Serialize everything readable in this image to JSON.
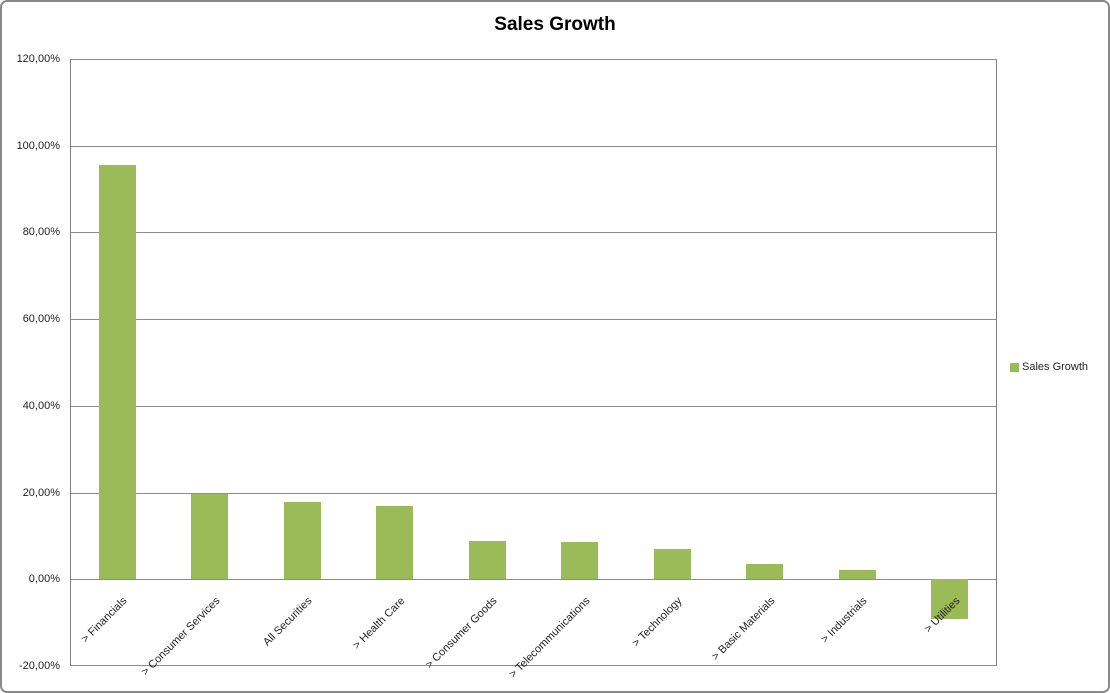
{
  "chart_data": {
    "type": "bar",
    "title": "Sales Growth",
    "categories": [
      "> Financials",
      "> Consumer Services",
      "All Securities",
      "> Health Care",
      "> Consumer Goods",
      "> Telecommunications",
      "> Technology",
      "> Basic Materials",
      "> Industrials",
      "> Utilities"
    ],
    "series": [
      {
        "name": "Sales Growth",
        "color": "#9BBB59",
        "values": [
          95.6,
          19.6,
          17.8,
          17.0,
          8.8,
          8.5,
          7.0,
          3.5,
          2.1,
          -9.2
        ]
      }
    ],
    "ylim": [
      -20,
      120
    ],
    "ytick_step": 20,
    "yticks": [
      {
        "value": 120,
        "label": "120,00%"
      },
      {
        "value": 100,
        "label": "100,00%"
      },
      {
        "value": 80,
        "label": "80,00%"
      },
      {
        "value": 60,
        "label": "60,00%"
      },
      {
        "value": 40,
        "label": "40,00%"
      },
      {
        "value": 20,
        "label": "20,00%"
      },
      {
        "value": 0,
        "label": "0,00%"
      },
      {
        "value": -20,
        "label": "-20,00%"
      }
    ],
    "grid": true,
    "xlabel": "",
    "ylabel": "",
    "legend": {
      "position": "right",
      "entries": [
        {
          "label": "Sales Growth",
          "color": "#9BBB59"
        }
      ]
    }
  },
  "colors": {
    "bar": "#9BBB59",
    "gridline": "#8C8C8C",
    "axis_line": "#808080",
    "frame_border": "#8A8A8A",
    "text": "#1F1F1F"
  }
}
